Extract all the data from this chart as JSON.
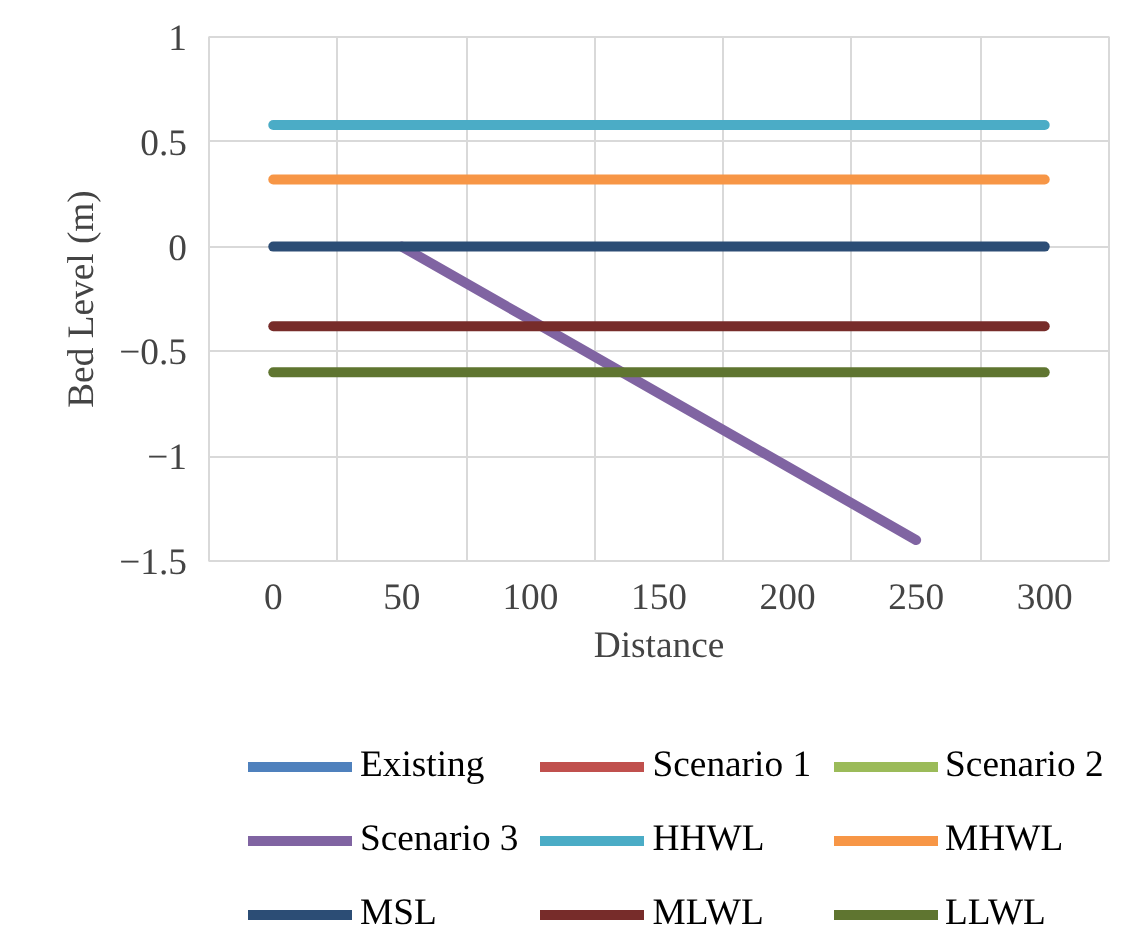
{
  "chart_data": {
    "type": "line",
    "xlabel": "Distance",
    "ylabel": "Bed Level (m)",
    "categories": [
      "0",
      "50",
      "100",
      "150",
      "200",
      "250",
      "300"
    ],
    "ylim": [
      -1.5,
      1
    ],
    "yticks": [
      -1.5,
      -1,
      -0.5,
      0,
      0.5,
      1
    ],
    "grid": true,
    "legend": "bottom",
    "marker": "none",
    "line_style": "solid",
    "series": [
      {
        "name": "Existing",
        "color": "#4f81bd",
        "values": [
          null,
          null,
          null,
          null,
          null,
          null,
          null
        ]
      },
      {
        "name": "Scenario 1",
        "color": "#c0504d",
        "values": [
          null,
          null,
          null,
          null,
          null,
          null,
          null
        ]
      },
      {
        "name": "Scenario 2",
        "color": "#9bbb59",
        "values": [
          null,
          null,
          null,
          null,
          null,
          null,
          null
        ]
      },
      {
        "name": "Scenario 3",
        "color": "#8064a2",
        "values": [
          null,
          0,
          -0.35,
          -0.7,
          -1.05,
          -1.4,
          null
        ]
      },
      {
        "name": "HHWL",
        "color": "#4bacc6",
        "values": [
          0.58,
          0.58,
          0.58,
          0.58,
          0.58,
          0.58,
          0.58
        ]
      },
      {
        "name": "MHWL",
        "color": "#f79646",
        "values": [
          0.32,
          0.32,
          0.32,
          0.32,
          0.32,
          0.32,
          0.32
        ]
      },
      {
        "name": "MSL",
        "color": "#2c4d75",
        "values": [
          0,
          0,
          0,
          0,
          0,
          0,
          0
        ]
      },
      {
        "name": "MLWL",
        "color": "#772c2a",
        "values": [
          -0.38,
          -0.38,
          -0.38,
          -0.38,
          -0.38,
          -0.38,
          -0.38
        ]
      },
      {
        "name": "LLWL",
        "color": "#5f7530",
        "values": [
          -0.6,
          -0.6,
          -0.6,
          -0.6,
          -0.6,
          -0.6,
          -0.6
        ]
      }
    ]
  }
}
